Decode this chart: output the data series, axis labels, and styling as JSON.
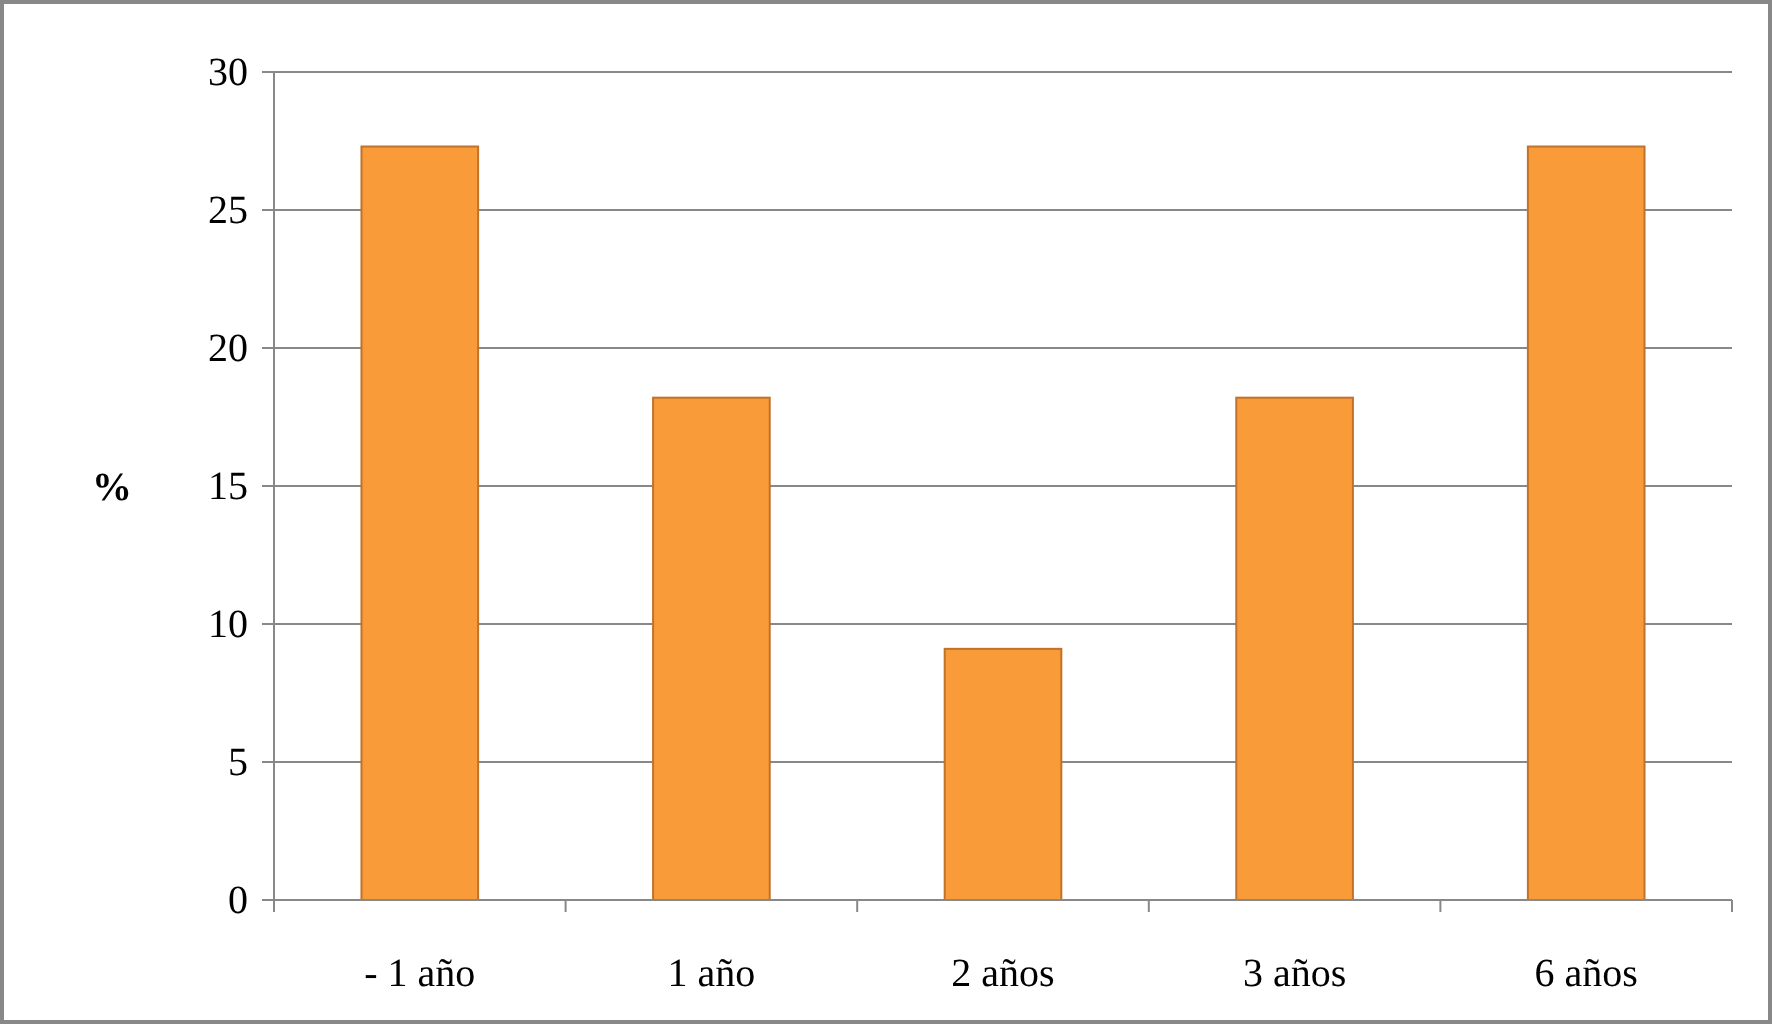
{
  "chart_data": {
    "type": "bar",
    "ylabel": "%",
    "categories": [
      "- 1 año",
      "1 año",
      "2 años",
      "3 años",
      "6 años"
    ],
    "values": [
      27.3,
      18.2,
      9.1,
      18.2,
      27.3
    ],
    "color": "#f99b38",
    "ylim": [
      0,
      30
    ],
    "yticks": [
      0,
      5,
      10,
      15,
      20,
      25,
      30
    ],
    "grid": "y"
  }
}
